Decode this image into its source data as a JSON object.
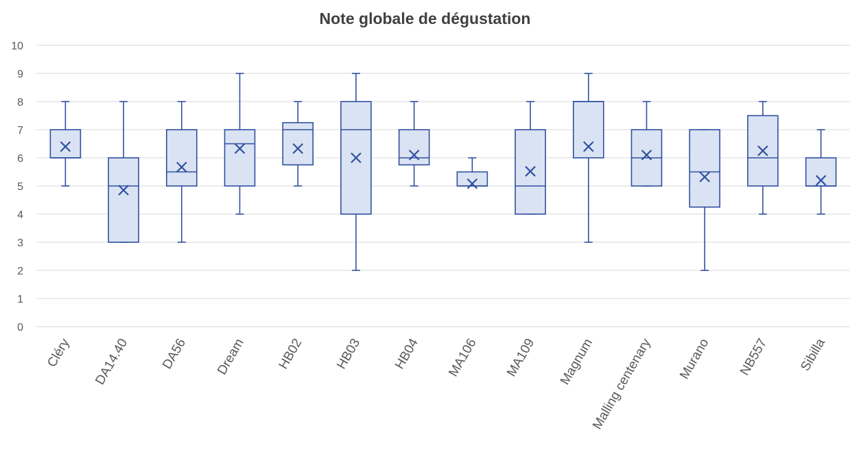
{
  "chart_data": {
    "type": "box",
    "title": "Note globale de dégustation",
    "xlabel": "",
    "ylabel": "",
    "ylim": [
      0,
      10
    ],
    "yticks": [
      0,
      1,
      2,
      3,
      4,
      5,
      6,
      7,
      8,
      9,
      10
    ],
    "grid": true,
    "categories": [
      "Cléry",
      "DA14.40",
      "DA56",
      "Dream",
      "HB02",
      "HB03",
      "HB04",
      "MA106",
      "MA109",
      "Magnum",
      "Malling centenary",
      "Murano",
      "NB557",
      "Sibilla"
    ],
    "boxes": [
      {
        "min": 5,
        "q1": 6,
        "median": 6,
        "q3": 7,
        "max": 8,
        "mean": 6.4
      },
      {
        "min": 3,
        "q1": 3,
        "median": 5,
        "q3": 6,
        "max": 8,
        "mean": 4.85
      },
      {
        "min": 3,
        "q1": 5,
        "median": 5.5,
        "q3": 7,
        "max": 8,
        "mean": 5.67
      },
      {
        "min": 4,
        "q1": 5,
        "median": 6.5,
        "q3": 7,
        "max": 9,
        "mean": 6.33
      },
      {
        "min": 5,
        "q1": 5.75,
        "median": 7,
        "q3": 7.25,
        "max": 8,
        "mean": 6.33
      },
      {
        "min": 2,
        "q1": 4,
        "median": 7,
        "q3": 8,
        "max": 9,
        "mean": 6
      },
      {
        "min": 5,
        "q1": 5.75,
        "median": 6,
        "q3": 7,
        "max": 8,
        "mean": 6.1
      },
      {
        "min": 5,
        "q1": 5,
        "median": 5,
        "q3": 5.5,
        "max": 6,
        "mean": 5.08
      },
      {
        "min": 4,
        "q1": 4,
        "median": 5,
        "q3": 7,
        "max": 8,
        "mean": 5.52
      },
      {
        "min": 3,
        "q1": 6,
        "median": 8,
        "q3": 8,
        "max": 9,
        "mean": 6.4
      },
      {
        "min": 5,
        "q1": 5,
        "median": 6,
        "q3": 7,
        "max": 8,
        "mean": 6.1
      },
      {
        "min": 2,
        "q1": 4.25,
        "median": 5.5,
        "q3": 7,
        "max": 7,
        "mean": 5.32
      },
      {
        "min": 4,
        "q1": 5,
        "median": 6,
        "q3": 7.5,
        "max": 8,
        "mean": 6.25
      },
      {
        "min": 4,
        "q1": 5,
        "median": 5,
        "q3": 6,
        "max": 7,
        "mean": 5.2
      }
    ],
    "colors": {
      "box_fill": "#dae3f3",
      "box_stroke": "#2f4f9f",
      "grid": "#d9d9d9",
      "text": "#595959"
    }
  }
}
